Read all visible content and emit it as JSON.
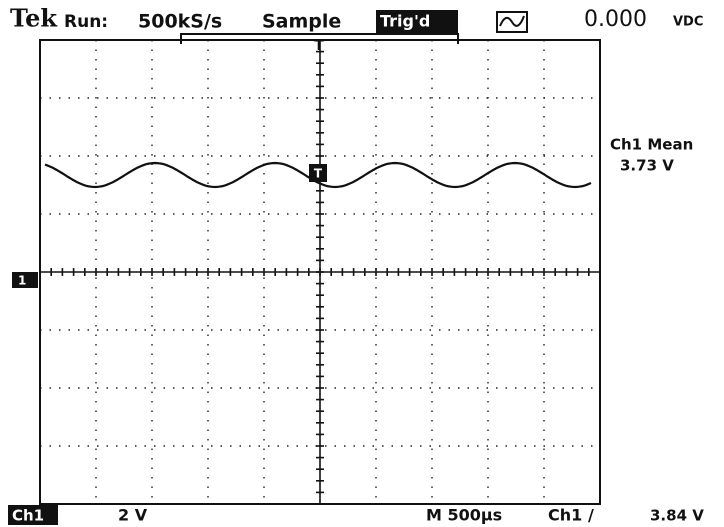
{
  "header": {
    "brand": "Tek",
    "run": "Run:",
    "rate": "500kS/s",
    "mode": "Sample",
    "trigger": "Trig'd",
    "reading": "0.000",
    "reading_unit": "VDC"
  },
  "markers": {
    "trigger_position": "T",
    "trigger_level": "T",
    "ground": "1"
  },
  "measurement": {
    "label": "Ch1 Mean",
    "value": "3.73 V"
  },
  "footer": {
    "channel": "Ch1",
    "scale": "2 V",
    "timebase": "M 500µs",
    "trigger_source": "Ch1",
    "trigger_slope": "/",
    "trigger_value": "3.84 V"
  }
}
